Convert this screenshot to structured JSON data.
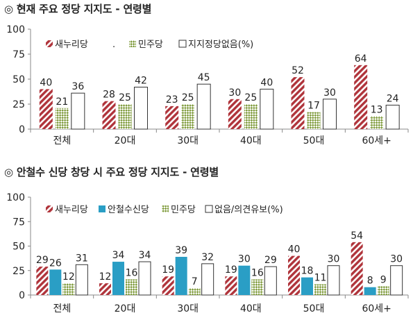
{
  "colors": {
    "saenuri_a": "#b0343b",
    "saenuri_b": "#ffffff",
    "minju_a": "#7e9a3a",
    "minju_b": "#ffffff",
    "ahn": "#2a9ec5",
    "none": "#ffffff",
    "outline": "#333333"
  },
  "chart_data": [
    {
      "type": "bar",
      "title": "◎  현재 주요 정당 지지도 - 연령별",
      "categories": [
        "전체",
        "20대",
        "30대",
        "40대",
        "50대",
        "60세+"
      ],
      "ylim": [
        0,
        100
      ],
      "yticks": [
        0,
        25,
        50,
        75,
        100
      ],
      "grid": false,
      "legend_position": "top-left",
      "legend_stray_mark": ".",
      "series": [
        {
          "name": "새누리당",
          "style": "saenuri",
          "values": [
            40,
            28,
            23,
            30,
            52,
            64
          ]
        },
        {
          "name": "민주당",
          "style": "minju",
          "values": [
            21,
            25,
            25,
            25,
            17,
            13
          ]
        },
        {
          "name": "지지정당없음(%)",
          "style": "none",
          "values": [
            36,
            42,
            45,
            40,
            30,
            24
          ]
        }
      ]
    },
    {
      "type": "bar",
      "title": "◎  안철수 신당 창당 시 주요 정당 지지도 - 연령별",
      "categories": [
        "전체",
        "20대",
        "30대",
        "40대",
        "50대",
        "60세+"
      ],
      "ylim": [
        0,
        100
      ],
      "yticks": [
        0,
        25,
        50,
        75,
        100
      ],
      "grid": false,
      "legend_position": "top-left",
      "series": [
        {
          "name": "새누리당",
          "style": "saenuri",
          "values": [
            29,
            12,
            19,
            19,
            40,
            54
          ]
        },
        {
          "name": "안철수신당",
          "style": "ahn",
          "values": [
            26,
            34,
            39,
            30,
            18,
            8
          ]
        },
        {
          "name": "민주당",
          "style": "minju",
          "values": [
            12,
            16,
            7,
            16,
            11,
            9
          ]
        },
        {
          "name": "없음/의견유보(%)",
          "style": "none",
          "values": [
            31,
            34,
            32,
            29,
            30,
            30
          ]
        }
      ]
    }
  ]
}
